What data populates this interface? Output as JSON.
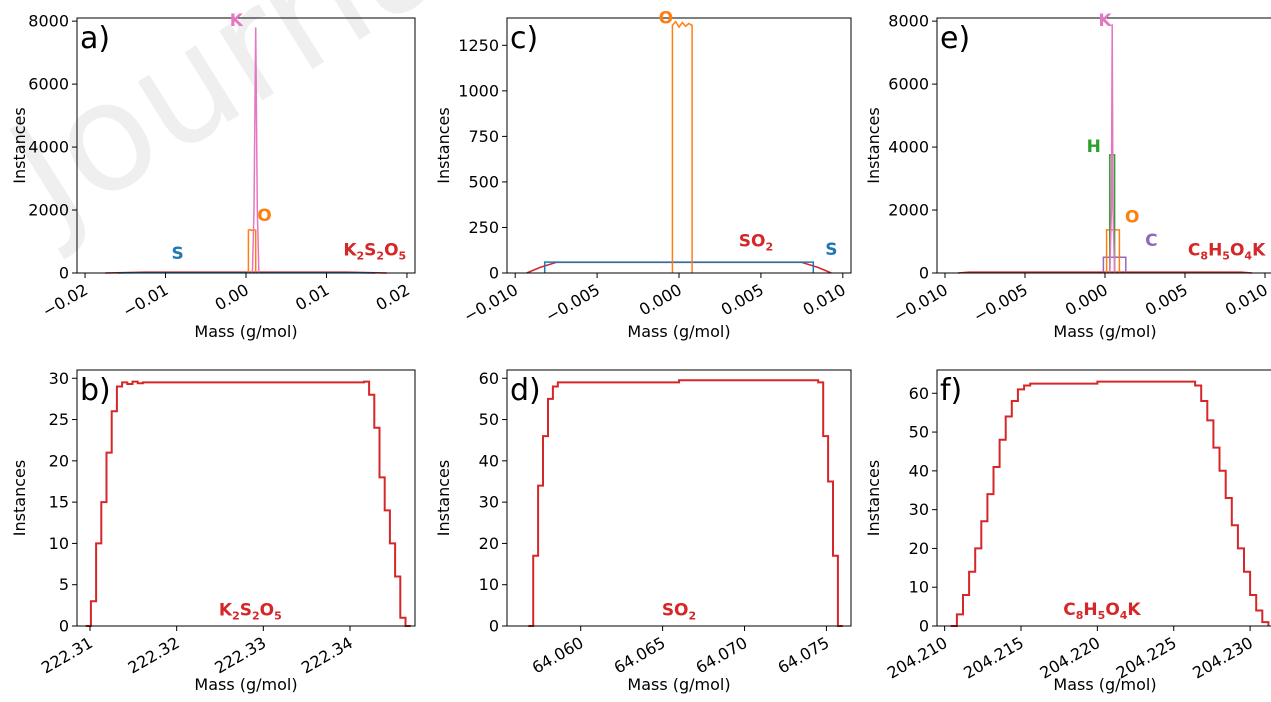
{
  "colors": {
    "red": "#d62728",
    "blue": "#1f77b4",
    "orange": "#ff7f0e",
    "pink": "#e377c2",
    "green": "#2ca02c",
    "purple": "#9467bd",
    "axis": "#000000",
    "watermark": "#dcdcdc"
  },
  "watermark": "Journal",
  "chart_data": [
    {
      "panel": "a)",
      "type": "line",
      "xlabel": "Mass (g/mol)",
      "ylabel": "Instances",
      "xlim": [
        -0.021,
        0.021
      ],
      "ylim": [
        0,
        8100
      ],
      "xticks": [
        -0.02,
        -0.01,
        0.0,
        0.01,
        0.02
      ],
      "xtick_labels": [
        "−0.02",
        "−0.01",
        "0.00",
        "0.01",
        "0.02"
      ],
      "yticks": [
        0,
        2000,
        4000,
        6000,
        8000
      ],
      "ytick_labels": [
        "0",
        "2000",
        "4000",
        "6000",
        "8000"
      ],
      "series": [
        {
          "name": "K2S2O5",
          "color": "red",
          "x": [
            -0.0175,
            -0.0125,
            0.0,
            0.0125,
            0.0175
          ],
          "y": [
            0,
            30,
            30,
            30,
            0
          ]
        },
        {
          "name": "S",
          "color": "blue",
          "x": [
            -0.016,
            -0.014,
            0.0,
            0.014,
            0.016
          ],
          "y": [
            0,
            10,
            10,
            10,
            0
          ]
        },
        {
          "name": "O",
          "color": "orange",
          "x": [
            0.0003,
            0.0003,
            0.0005,
            0.0007,
            0.001,
            0.0012,
            0.0012
          ],
          "y": [
            0,
            1360,
            1380,
            1350,
            1370,
            1360,
            0
          ]
        },
        {
          "name": "K",
          "color": "pink",
          "x": [
            0.0008,
            0.001,
            0.0012,
            0.0014,
            0.0016
          ],
          "y": [
            0,
            2000,
            7800,
            2000,
            0
          ]
        }
      ],
      "labels": [
        {
          "text": "K",
          "color": "pink",
          "x": -0.0012,
          "y": 7850
        },
        {
          "text": "O",
          "color": "orange",
          "x": 0.0023,
          "y": 1650
        },
        {
          "text": "S",
          "color": "blue",
          "x": -0.0085,
          "y": 450
        }
      ],
      "formula": {
        "parts": [
          [
            "K",
            ""
          ],
          [
            "2",
            "sub"
          ],
          [
            "S",
            ""
          ],
          [
            "2",
            "sub"
          ],
          [
            "O",
            ""
          ],
          [
            "5",
            "sub"
          ]
        ],
        "x": 0.016,
        "y": 560
      }
    },
    {
      "panel": "c)",
      "type": "line",
      "xlabel": "Mass (g/mol)",
      "ylabel": "Instances",
      "xlim": [
        -0.0105,
        0.0105
      ],
      "ylim": [
        0,
        1400
      ],
      "xticks": [
        -0.01,
        -0.005,
        0.0,
        0.005,
        0.01
      ],
      "xtick_labels": [
        "−0.010",
        "−0.005",
        "0.000",
        "0.005",
        "0.010"
      ],
      "yticks": [
        0,
        250,
        500,
        750,
        1000,
        1250
      ],
      "ytick_labels": [
        "0",
        "250",
        "500",
        "750",
        "1000",
        "1250"
      ],
      "series": [
        {
          "name": "SO2",
          "color": "red",
          "x": [
            -0.0093,
            -0.0085,
            -0.0075,
            0.0,
            0.0075,
            0.0085,
            0.0093
          ],
          "y": [
            0,
            30,
            58,
            58,
            58,
            30,
            0
          ]
        },
        {
          "name": "S",
          "color": "blue",
          "x": [
            -0.0082,
            -0.0082,
            0.0082,
            0.0082
          ],
          "y": [
            0,
            60,
            60,
            0
          ]
        },
        {
          "name": "O",
          "color": "orange",
          "x": [
            -0.0004,
            -0.0004,
            -0.0002,
            0.0,
            0.0002,
            0.0004,
            0.0006,
            0.0008,
            0.0008
          ],
          "y": [
            0,
            1360,
            1380,
            1350,
            1375,
            1355,
            1370,
            1360,
            0
          ]
        }
      ],
      "labels": [
        {
          "text": "O",
          "color": "orange",
          "x": -0.0008,
          "y": 1370
        },
        {
          "text": "S",
          "color": "blue",
          "x": 0.0093,
          "y": 100
        }
      ],
      "formula": {
        "parts": [
          [
            "SO",
            ""
          ],
          [
            "2",
            "sub"
          ]
        ],
        "x": 0.0047,
        "y": 145
      }
    },
    {
      "panel": "e)",
      "type": "line",
      "xlabel": "Mass (g/mol)",
      "ylabel": "Instances",
      "xlim": [
        -0.0105,
        0.0105
      ],
      "ylim": [
        0,
        8100
      ],
      "xticks": [
        -0.01,
        -0.005,
        0.0,
        0.005,
        0.01
      ],
      "xtick_labels": [
        "−0.010",
        "−0.005",
        "0.000",
        "0.005",
        "0.010"
      ],
      "yticks": [
        0,
        2000,
        4000,
        6000,
        8000
      ],
      "ytick_labels": [
        "0",
        "2000",
        "4000",
        "6000",
        "8000"
      ],
      "series": [
        {
          "name": "C8H5O4K",
          "color": "red",
          "x": [
            -0.0092,
            -0.0085,
            0.0,
            0.0085,
            0.0092
          ],
          "y": [
            0,
            30,
            30,
            30,
            0
          ]
        },
        {
          "name": "C",
          "color": "purple",
          "x": [
            -0.0001,
            -0.0001,
            0.0013,
            0.0013
          ],
          "y": [
            0,
            500,
            500,
            0
          ]
        },
        {
          "name": "O",
          "color": "orange",
          "x": [
            0.0001,
            0.0001,
            0.0009,
            0.0009
          ],
          "y": [
            0,
            1370,
            1370,
            0
          ]
        },
        {
          "name": "H",
          "color": "green",
          "x": [
            0.0003,
            0.0003,
            0.0006,
            0.0006
          ],
          "y": [
            0,
            3750,
            3750,
            0
          ]
        },
        {
          "name": "K",
          "color": "pink",
          "x": [
            0.0003,
            0.0004,
            0.00045,
            0.0005,
            0.0006
          ],
          "y": [
            0,
            2000,
            7900,
            2000,
            0
          ]
        }
      ],
      "labels": [
        {
          "text": "K",
          "color": "pink",
          "x": 0.0,
          "y": 7850
        },
        {
          "text": "H",
          "color": "green",
          "x": -0.0007,
          "y": 3850
        },
        {
          "text": "O",
          "color": "orange",
          "x": 0.0017,
          "y": 1600
        },
        {
          "text": "C",
          "color": "purple",
          "x": 0.0029,
          "y": 850
        }
      ],
      "formula": {
        "parts": [
          [
            "C",
            ""
          ],
          [
            "8",
            "sub"
          ],
          [
            "H",
            ""
          ],
          [
            "5",
            "sub"
          ],
          [
            "O",
            ""
          ],
          [
            "4",
            "sub"
          ],
          [
            "K",
            ""
          ]
        ],
        "x": 0.0076,
        "y": 560
      }
    },
    {
      "panel": "b)",
      "type": "line",
      "xlabel": "Mass (g/mol)",
      "ylabel": "Instances",
      "xlim": [
        222.3085,
        222.3475
      ],
      "ylim": [
        0,
        31
      ],
      "xticks": [
        222.31,
        222.32,
        222.33,
        222.34
      ],
      "xtick_labels": [
        "222.31",
        "222.32",
        "222.33",
        "222.34"
      ],
      "yticks": [
        0,
        5,
        10,
        15,
        20,
        25,
        30
      ],
      "ytick_labels": [
        "0",
        "5",
        "10",
        "15",
        "20",
        "25",
        "30"
      ],
      "series": [
        {
          "name": "K2S2O5",
          "color": "red",
          "step": true,
          "x": [
            222.3095,
            222.3101,
            222.3107,
            222.3113,
            222.3119,
            222.3125,
            222.3131,
            222.3137,
            222.3143,
            222.3149,
            222.3155,
            222.3161,
            222.3167,
            222.33,
            222.3416,
            222.3422,
            222.3428,
            222.3434,
            222.344,
            222.3446,
            222.3452,
            222.3458,
            222.3464,
            222.347
          ],
          "y": [
            0,
            3,
            10,
            15,
            21,
            26,
            29,
            29.5,
            29.3,
            29.6,
            29.4,
            29.5,
            29.5,
            29.5,
            29.6,
            28,
            24,
            18,
            14,
            10,
            6,
            1,
            0,
            0
          ]
        }
      ],
      "labels": [],
      "formula": {
        "parts": [
          [
            "K",
            ""
          ],
          [
            "2",
            "sub"
          ],
          [
            "S",
            ""
          ],
          [
            "2",
            "sub"
          ],
          [
            "O",
            ""
          ],
          [
            "5",
            "sub"
          ]
        ],
        "x": 222.3285,
        "y": 1.3
      }
    },
    {
      "panel": "d)",
      "type": "line",
      "xlabel": "Mass (g/mol)",
      "ylabel": "Instances",
      "xlim": [
        64.0555,
        64.0765
      ],
      "ylim": [
        0,
        62
      ],
      "xticks": [
        64.06,
        64.065,
        64.07,
        64.075
      ],
      "xtick_labels": [
        "64.060",
        "64.065",
        "64.070",
        "64.075"
      ],
      "yticks": [
        0,
        10,
        20,
        30,
        40,
        50,
        60
      ],
      "ytick_labels": [
        "0",
        "10",
        "20",
        "30",
        "40",
        "50",
        "60"
      ],
      "series": [
        {
          "name": "SO2",
          "color": "red",
          "step": true,
          "x": [
            64.0568,
            64.0571,
            64.0574,
            64.0577,
            64.058,
            64.0583,
            64.0586,
            64.06,
            64.066,
            64.0745,
            64.0748,
            64.0751,
            64.0754,
            64.0757,
            64.076
          ],
          "y": [
            0,
            17,
            34,
            46,
            55,
            58,
            59,
            59,
            59.5,
            59,
            46,
            35,
            17,
            0,
            0
          ]
        }
      ],
      "labels": [],
      "formula": {
        "parts": [
          [
            "SO",
            ""
          ],
          [
            "2",
            "sub"
          ]
        ],
        "x": 64.066,
        "y": 2.6
      }
    },
    {
      "panel": "f)",
      "type": "line",
      "xlabel": "Mass (g/mol)",
      "ylabel": "Instances",
      "xlim": [
        204.2095,
        204.2315
      ],
      "ylim": [
        0,
        66
      ],
      "xticks": [
        204.21,
        204.215,
        204.22,
        204.225,
        204.23
      ],
      "xtick_labels": [
        "204.210",
        "204.215",
        "204.220",
        "204.225",
        "204.230"
      ],
      "yticks": [
        0,
        10,
        20,
        30,
        40,
        50,
        60
      ],
      "ytick_labels": [
        "0",
        "10",
        "20",
        "30",
        "40",
        "50",
        "60"
      ],
      "series": [
        {
          "name": "C8H5O4K",
          "color": "red",
          "step": true,
          "x": [
            204.2104,
            204.2108,
            204.2112,
            204.2116,
            204.212,
            204.2124,
            204.2128,
            204.2132,
            204.2136,
            204.214,
            204.2144,
            204.2148,
            204.2152,
            204.2156,
            204.216,
            204.22,
            204.2264,
            204.2268,
            204.2272,
            204.2276,
            204.228,
            204.2284,
            204.2288,
            204.2292,
            204.2296,
            204.23,
            204.2304,
            204.2308,
            204.2312
          ],
          "y": [
            0,
            3,
            8,
            14,
            20,
            27,
            34,
            41,
            48,
            54,
            58,
            61,
            62,
            62.5,
            62.5,
            63,
            62,
            58,
            53,
            46,
            40,
            33,
            26,
            20,
            14,
            8,
            4,
            1,
            0
          ]
        }
      ],
      "labels": [],
      "formula": {
        "parts": [
          [
            "C",
            ""
          ],
          [
            "8",
            "sub"
          ],
          [
            "H",
            ""
          ],
          [
            "5",
            "sub"
          ],
          [
            "O",
            ""
          ],
          [
            "4",
            "sub"
          ],
          [
            "K",
            ""
          ]
        ],
        "x": 204.2203,
        "y": 2.8
      }
    }
  ]
}
